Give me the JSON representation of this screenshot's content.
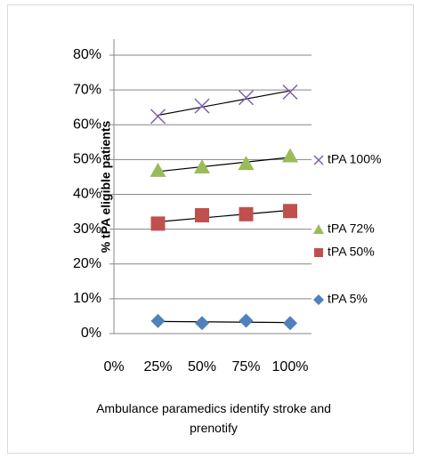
{
  "chart_data": {
    "type": "scatter",
    "xlabel": "Ambulance paramedics identify stroke and prenotify",
    "ylabel": "% tPA eligible patients",
    "xlim": [
      0,
      100
    ],
    "xticks": [
      {
        "value": 0,
        "label": "0%"
      },
      {
        "value": 25,
        "label": "25%"
      },
      {
        "value": 50,
        "label": "50%"
      },
      {
        "value": 75,
        "label": "75%"
      },
      {
        "value": 100,
        "label": "100%"
      }
    ],
    "ylim": [
      0,
      80
    ],
    "yticks": [
      {
        "value": 0,
        "label": "0%"
      },
      {
        "value": 10,
        "label": "10%"
      },
      {
        "value": 20,
        "label": "20%"
      },
      {
        "value": 30,
        "label": "30%"
      },
      {
        "value": 40,
        "label": "40%"
      },
      {
        "value": 50,
        "label": "50%"
      },
      {
        "value": 60,
        "label": "60%"
      },
      {
        "value": 70,
        "label": "70%"
      },
      {
        "value": 80,
        "label": "80%"
      }
    ],
    "grid": true,
    "trendline": "linear",
    "legend": "right",
    "series": [
      {
        "name": "tPA 100%",
        "color": "#7f5fa8",
        "marker": "x",
        "x": [
          25,
          50,
          75,
          100
        ],
        "values": [
          62.4,
          65.4,
          67.8,
          69.4
        ]
      },
      {
        "name": "tPA 72%",
        "color": "#9bbb59",
        "marker": "triangle",
        "x": [
          25,
          50,
          75,
          100
        ],
        "values": [
          46.8,
          47.8,
          48.8,
          51
        ]
      },
      {
        "name": "tPA 50%",
        "color": "#c0504d",
        "marker": "square",
        "x": [
          25,
          50,
          75,
          100
        ],
        "values": [
          31.6,
          34,
          34.3,
          35.2
        ]
      },
      {
        "name": "tPA 5%",
        "color": "#4f81bd",
        "marker": "diamond",
        "x": [
          25,
          50,
          75,
          100
        ],
        "values": [
          3.6,
          3,
          3.7,
          3
        ]
      }
    ]
  }
}
